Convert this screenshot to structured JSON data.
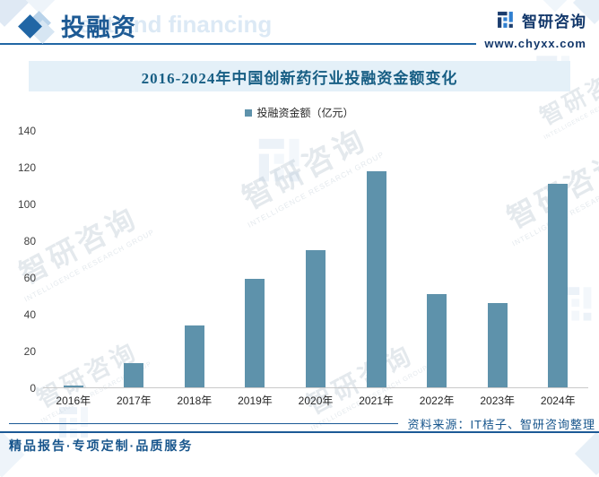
{
  "header": {
    "title": "投融资",
    "title_watermark": "ent and financing",
    "logo_text": "智研咨询",
    "website": "www.chyxx.com"
  },
  "chart_data": {
    "type": "bar",
    "title": "2016-2024年中国创新药行业投融资金额变化",
    "categories": [
      "2016年",
      "2017年",
      "2018年",
      "2019年",
      "2020年",
      "2021年",
      "2022年",
      "2023年",
      "2024年"
    ],
    "values": [
      1,
      13,
      34,
      59,
      75,
      118,
      51,
      46,
      111
    ],
    "legend": [
      "投融资金额（亿元）"
    ],
    "legend_position": "top-center",
    "xlabel": "",
    "ylabel": "",
    "ylim": [
      0,
      140
    ],
    "ytick_step": 20,
    "grid": false,
    "bar_color": "#5e92ab"
  },
  "source": {
    "label": "资料来源：IT桔子、智研咨询整理"
  },
  "footer": {
    "slogan": "精品报告·专项定制·品质服务"
  },
  "watermark": {
    "cn": "智研咨询",
    "en": "INTELLIGENCE RESEARCH GROUP"
  },
  "colors": {
    "accent_navy": "#1c5a96",
    "header_blue": "#1d5a94",
    "chart_title_blue": "#175e84",
    "title_band_bg": "#e4f0f8",
    "bar": "#5e92ab",
    "axis_line": "#c9c9c9"
  }
}
